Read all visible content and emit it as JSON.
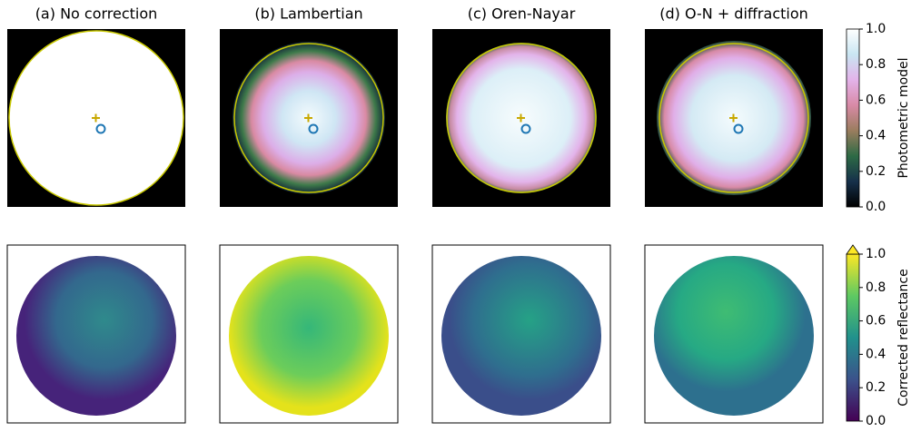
{
  "panels": [
    {
      "title": "(a) No correction"
    },
    {
      "title": "(b) Lambertian"
    },
    {
      "title": "(c) Oren-Nayar"
    },
    {
      "title": "(d) O-N + diffraction"
    }
  ],
  "colorbars": [
    {
      "label": "Photometric model",
      "lim": [
        0,
        1
      ],
      "ticks": [
        {
          "value": 0,
          "label": "0.0"
        },
        {
          "value": 0.2,
          "label": "0.2"
        },
        {
          "value": 0.4,
          "label": "0.4"
        },
        {
          "value": 0.6,
          "label": "0.6"
        },
        {
          "value": 0.8,
          "label": "0.8"
        },
        {
          "value": 1,
          "label": "1.0"
        }
      ],
      "colormap": [
        "#000000",
        "#16304a",
        "#2d6a45",
        "#9a7d5e",
        "#d88aa6",
        "#e3b3ea",
        "#c9e6f2",
        "#ffffff"
      ],
      "extend_max": false
    },
    {
      "label": "Corrected reflectance",
      "lim": [
        0,
        1
      ],
      "ticks": [
        {
          "value": 0,
          "label": "0.0"
        },
        {
          "value": 0.2,
          "label": "0.2"
        },
        {
          "value": 0.4,
          "label": "0.4"
        },
        {
          "value": 0.6,
          "label": "0.6"
        },
        {
          "value": 0.8,
          "label": "0.8"
        },
        {
          "value": 1,
          "label": "1.0"
        }
      ],
      "colormap": [
        "#440154",
        "#3b528b",
        "#21918c",
        "#5ec962",
        "#fde725"
      ],
      "extend_max": true
    }
  ]
}
